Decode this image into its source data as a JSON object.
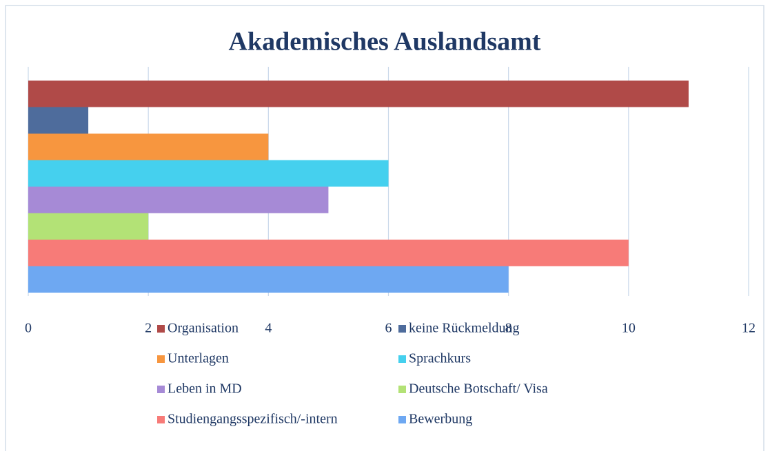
{
  "chart_data": {
    "type": "bar",
    "orientation": "horizontal",
    "title": "Akademisches Auslandsamt",
    "series": [
      {
        "name": "Organisation",
        "color": "#b04a48",
        "values": [
          11
        ]
      },
      {
        "name": "keine Rückmeldung",
        "color": "#4e6c9c",
        "values": [
          1
        ]
      },
      {
        "name": "Unterlagen",
        "color": "#f7963f",
        "values": [
          4
        ]
      },
      {
        "name": "Sprachkurs",
        "color": "#45d0ee",
        "values": [
          6
        ]
      },
      {
        "name": "Leben in MD",
        "color": "#a68ad6",
        "values": [
          5
        ]
      },
      {
        "name": "Deutsche Botschaft/ Visa",
        "color": "#b3e276",
        "values": [
          2
        ]
      },
      {
        "name": "Studiengangsspezifisch/-intern",
        "color": "#f77b78",
        "values": [
          10
        ]
      },
      {
        "name": "Bewerbung",
        "color": "#6ea8f2",
        "values": [
          8
        ]
      }
    ],
    "xlim": [
      0,
      12
    ],
    "xticks": [
      0,
      2,
      4,
      6,
      8,
      10,
      12
    ],
    "grid": true,
    "legend": "bottom"
  }
}
